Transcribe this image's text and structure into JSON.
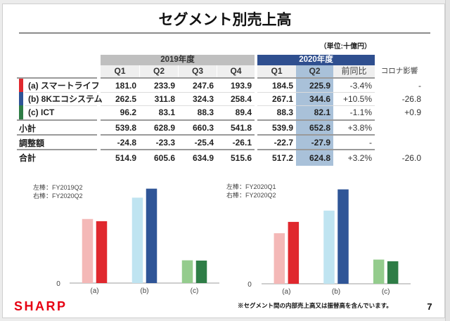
{
  "page": {
    "title": "セグメント別売上高",
    "unit": "（単位:十億円）",
    "footnote": "※セグメント間の内部売上高又は振替高を含んでいます。",
    "page_number": "7",
    "logo": "SHARP"
  },
  "colors": {
    "brand": "#e60012",
    "fy2019_header": "#bfbfbf",
    "fy2020_header": "#2f4f8f",
    "q2_highlight": "#a9c1d9"
  },
  "table": {
    "group_headers": {
      "fy2019": "2019年度",
      "fy2020": "2020年度"
    },
    "columns": [
      "Q1",
      "Q2",
      "Q3",
      "Q4",
      "Q1",
      "Q2",
      "前同比",
      "コロナ影響"
    ],
    "rows": [
      {
        "label": "(a) スマートライフ",
        "color": "#e0282e",
        "values": [
          "181.0",
          "233.9",
          "247.6",
          "193.9",
          "184.5",
          "225.9",
          "-3.4%",
          "-"
        ]
      },
      {
        "label": "(b) 8Kエコシステム",
        "color": "#2e5496",
        "values": [
          "262.5",
          "311.8",
          "324.3",
          "258.4",
          "267.1",
          "344.6",
          "+10.5%",
          "-26.8"
        ]
      },
      {
        "label": "(c) ICT",
        "color": "#2e7d46",
        "values": [
          "96.2",
          "83.1",
          "88.3",
          "89.4",
          "88.3",
          "82.1",
          "-1.1%",
          "+0.9"
        ]
      },
      {
        "label": "小計",
        "values": [
          "539.8",
          "628.9",
          "660.3",
          "541.8",
          "539.9",
          "652.8",
          "+3.8%",
          ""
        ]
      },
      {
        "label": "調整額",
        "values": [
          "-24.8",
          "-23.3",
          "-25.4",
          "-26.1",
          "-22.7",
          "-27.9",
          "-",
          ""
        ]
      },
      {
        "label": "合計",
        "values": [
          "514.9",
          "605.6",
          "634.9",
          "515.6",
          "517.2",
          "624.8",
          "+3.2%",
          "-26.0"
        ]
      }
    ]
  },
  "chart_data": [
    {
      "type": "bar",
      "title": "",
      "legend": [
        "左棒：FY2019Q2",
        "右棒：FY2020Q2"
      ],
      "legend_position": "top-left",
      "categories": [
        "(a)",
        "(b)",
        "(c)"
      ],
      "series": [
        {
          "name": "FY2019Q2",
          "values": [
            233.9,
            311.8,
            83.1
          ],
          "colors": [
            "#f4b8b7",
            "#bfe4f1",
            "#94cc8d"
          ]
        },
        {
          "name": "FY2020Q2",
          "values": [
            225.9,
            344.6,
            82.1
          ],
          "colors": [
            "#e0282e",
            "#2f5597",
            "#2e7d46"
          ]
        }
      ],
      "yticks": [
        "0"
      ],
      "ylim": [
        0,
        400
      ],
      "xlabel": "",
      "ylabel": "",
      "grid": false
    },
    {
      "type": "bar",
      "title": "",
      "legend": [
        "左棒：FY2020Q1",
        "右棒：FY2020Q2"
      ],
      "legend_position": "top-left",
      "categories": [
        "(a)",
        "(b)",
        "(c)"
      ],
      "series": [
        {
          "name": "FY2020Q1",
          "values": [
            184.5,
            267.1,
            88.3
          ],
          "colors": [
            "#f4b8b7",
            "#bfe4f1",
            "#94cc8d"
          ]
        },
        {
          "name": "FY2020Q2",
          "values": [
            225.9,
            344.6,
            82.1
          ],
          "colors": [
            "#e0282e",
            "#2f5597",
            "#2e7d46"
          ]
        }
      ],
      "yticks": [
        "0"
      ],
      "ylim": [
        0,
        400
      ],
      "xlabel": "",
      "ylabel": "",
      "grid": false
    }
  ]
}
